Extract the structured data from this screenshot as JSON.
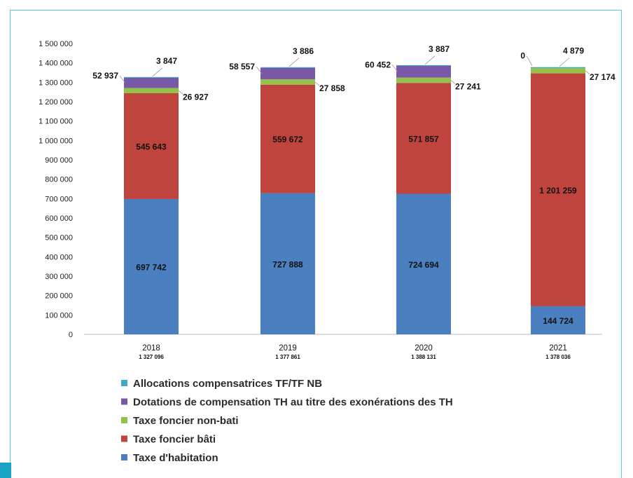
{
  "chart_data": {
    "type": "bar",
    "stacked": true,
    "categories": [
      "2018",
      "2019",
      "2020",
      "2021"
    ],
    "totals": [
      "1 327 096",
      "1 377 861",
      "1 388 131",
      "1 378 036"
    ],
    "ylim": [
      0,
      1500000
    ],
    "ytick_step": 100000,
    "ytick_labels": [
      "0",
      "100 000",
      "200 000",
      "300 000",
      "400 000",
      "500 000",
      "600 000",
      "700 000",
      "800 000",
      "900 000",
      "1 000 000",
      "1 100 000",
      "1 200 000",
      "1 300 000",
      "1 400 000",
      "1 500 000"
    ],
    "legend_position": "bottom",
    "series": [
      {
        "name": "Taxe d'habitation",
        "color": "#4a7fc0",
        "values": [
          697742,
          727888,
          724694,
          144724
        ],
        "labels": [
          "697 742",
          "727 888",
          "724 694",
          "144 724"
        ]
      },
      {
        "name": "Taxe foncier bâti",
        "color": "#c0443e",
        "values": [
          545643,
          559672,
          571857,
          1201259
        ],
        "labels": [
          "545 643",
          "559 672",
          "571 857",
          "1 201 259"
        ]
      },
      {
        "name": "Taxe foncier non-bati",
        "color": "#94c14a",
        "values": [
          26927,
          27858,
          27241,
          27174
        ],
        "labels": [
          "26 927",
          "27 858",
          "27 241",
          "27 174"
        ]
      },
      {
        "name": "Dotations de compensation TH au titre des exonérations des TH",
        "color": "#7a58a8",
        "values": [
          52937,
          58557,
          60452,
          0
        ],
        "labels": [
          "52 937",
          "58 557",
          "60 452",
          "0"
        ]
      },
      {
        "name": "Allocations compensatrices TF/TF NB",
        "color": "#3fa8c8",
        "values": [
          3847,
          3886,
          3887,
          4879
        ],
        "labels": [
          "3 847",
          "3 886",
          "3 887",
          "4 879"
        ]
      }
    ],
    "legend_order": [
      4,
      3,
      2,
      1,
      0
    ]
  }
}
